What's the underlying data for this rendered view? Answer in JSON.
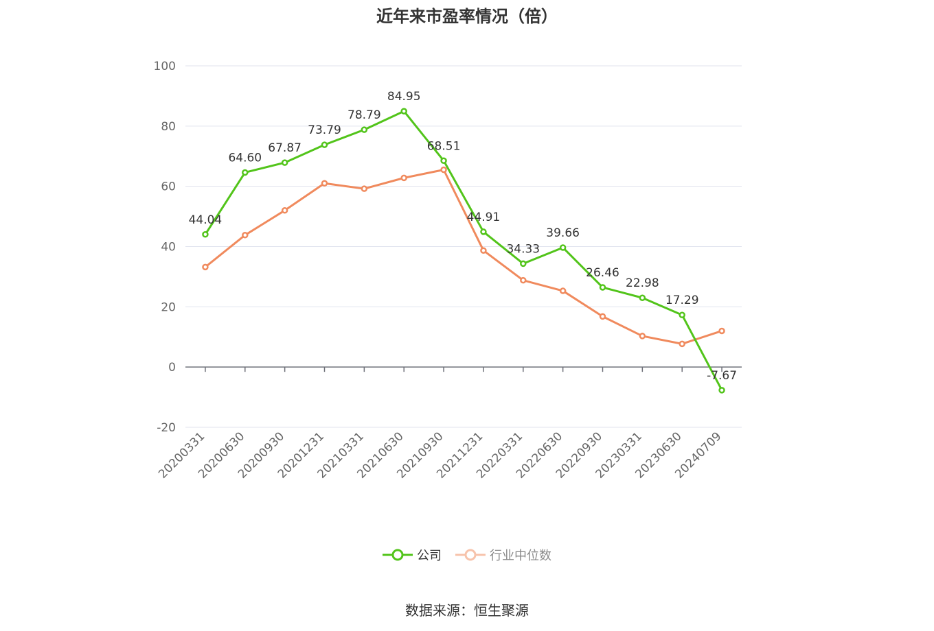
{
  "chart_data": {
    "type": "line",
    "title": "近年来市盈率情况（倍）",
    "categories": [
      "20200331",
      "20200630",
      "20200930",
      "20201231",
      "20210331",
      "20210630",
      "20210930",
      "20211231",
      "20220331",
      "20220630",
      "20220930",
      "20230331",
      "20230630",
      "20240709"
    ],
    "series": [
      {
        "name": "公司",
        "color": "#52c41a",
        "values": [
          44.04,
          64.6,
          67.87,
          73.79,
          78.79,
          84.95,
          68.51,
          44.91,
          34.33,
          39.66,
          26.46,
          22.98,
          17.29,
          -7.67
        ],
        "labels": [
          "44.04",
          "64.60",
          "67.87",
          "73.79",
          "78.79",
          "84.95",
          "68.51",
          "44.91",
          "34.33",
          "39.66",
          "26.46",
          "22.98",
          "17.29",
          "-7.67"
        ]
      },
      {
        "name": "行业中位数",
        "color": "#f08a5d",
        "values": [
          33.2,
          43.8,
          52.0,
          61.0,
          59.2,
          62.8,
          65.5,
          38.7,
          28.8,
          25.3,
          16.8,
          10.3,
          7.7,
          12.0
        ]
      }
    ],
    "yticks": [
      "100",
      "80",
      "60",
      "40",
      "20",
      "0",
      "-20"
    ],
    "ylim": [
      -20,
      100
    ],
    "grid": true,
    "legend_position": "bottom"
  },
  "source": "数据来源：恒生聚源"
}
